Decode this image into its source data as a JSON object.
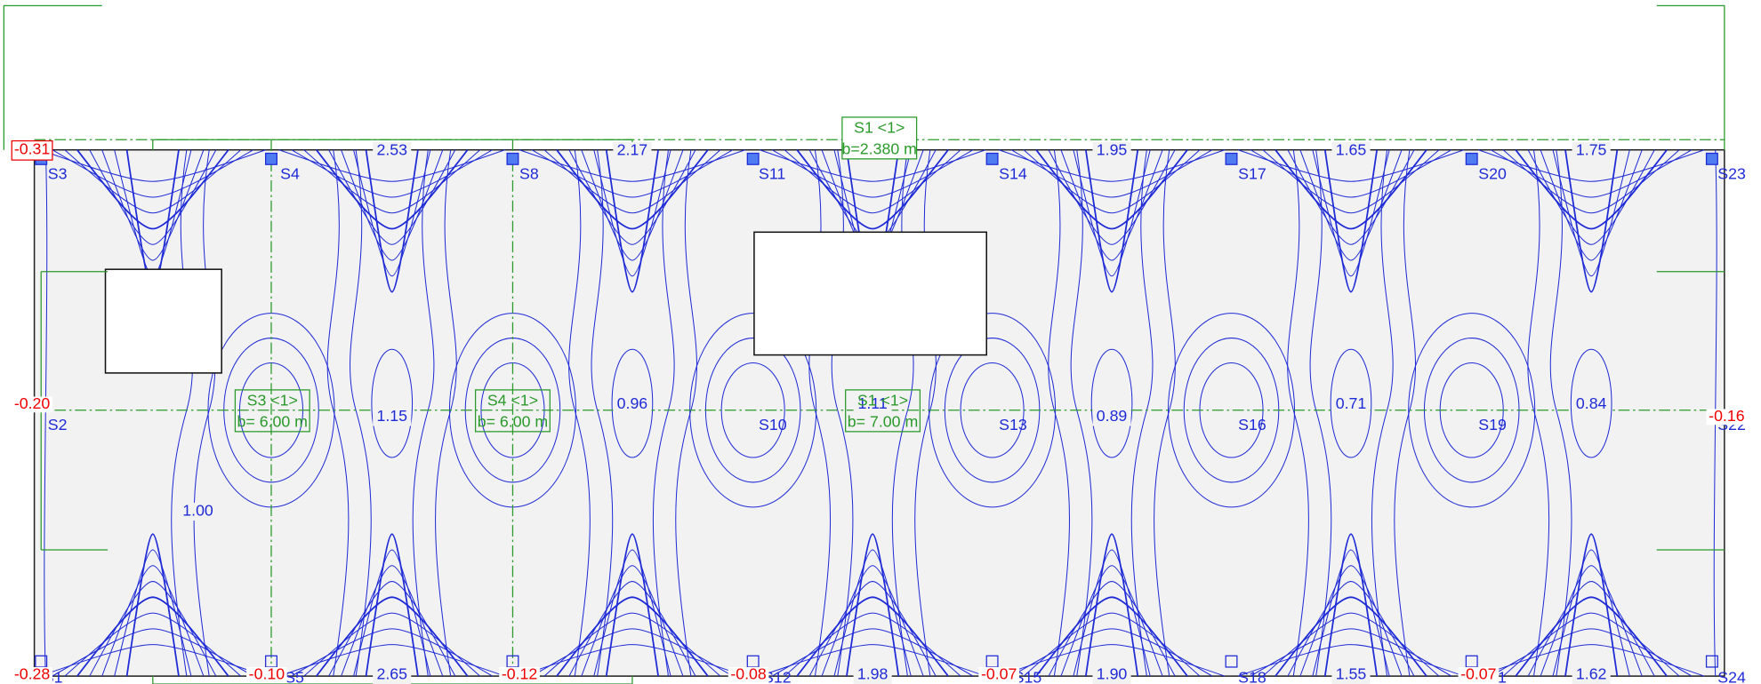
{
  "supports": [
    "S3",
    "S4",
    "S8",
    "S11",
    "S14",
    "S17",
    "S20",
    "S23",
    "S2",
    "S10",
    "S13",
    "S16",
    "S19",
    "S22",
    "S1",
    "S5",
    "S12",
    "S15",
    "S18",
    "S21",
    "S24"
  ],
  "contour_labels": [
    "2.53",
    "2.17",
    "1.95",
    "1.65",
    "1.75",
    "1.15",
    "0.96",
    "1.11",
    "0.89",
    "0.71",
    "0.84",
    "1.00",
    "2.65",
    "1.98",
    "1.90",
    "1.55",
    "1.62"
  ],
  "extreme_labels": [
    "-0.31",
    "-0.20",
    "-0.28",
    "-0.10",
    "-0.12",
    "-0.08",
    "-0.07",
    "-0.07",
    "-0.16"
  ],
  "beam_labels": [
    {
      "name": "S1 <1>",
      "width": "b=2.380 m"
    },
    {
      "name": "S3 <1>",
      "width": "b= 6.00 m"
    },
    {
      "name": "S4 <1>",
      "width": "b= 6.00 m"
    },
    {
      "name": "S1 <1>",
      "width": "b= 7.00 m"
    }
  ]
}
